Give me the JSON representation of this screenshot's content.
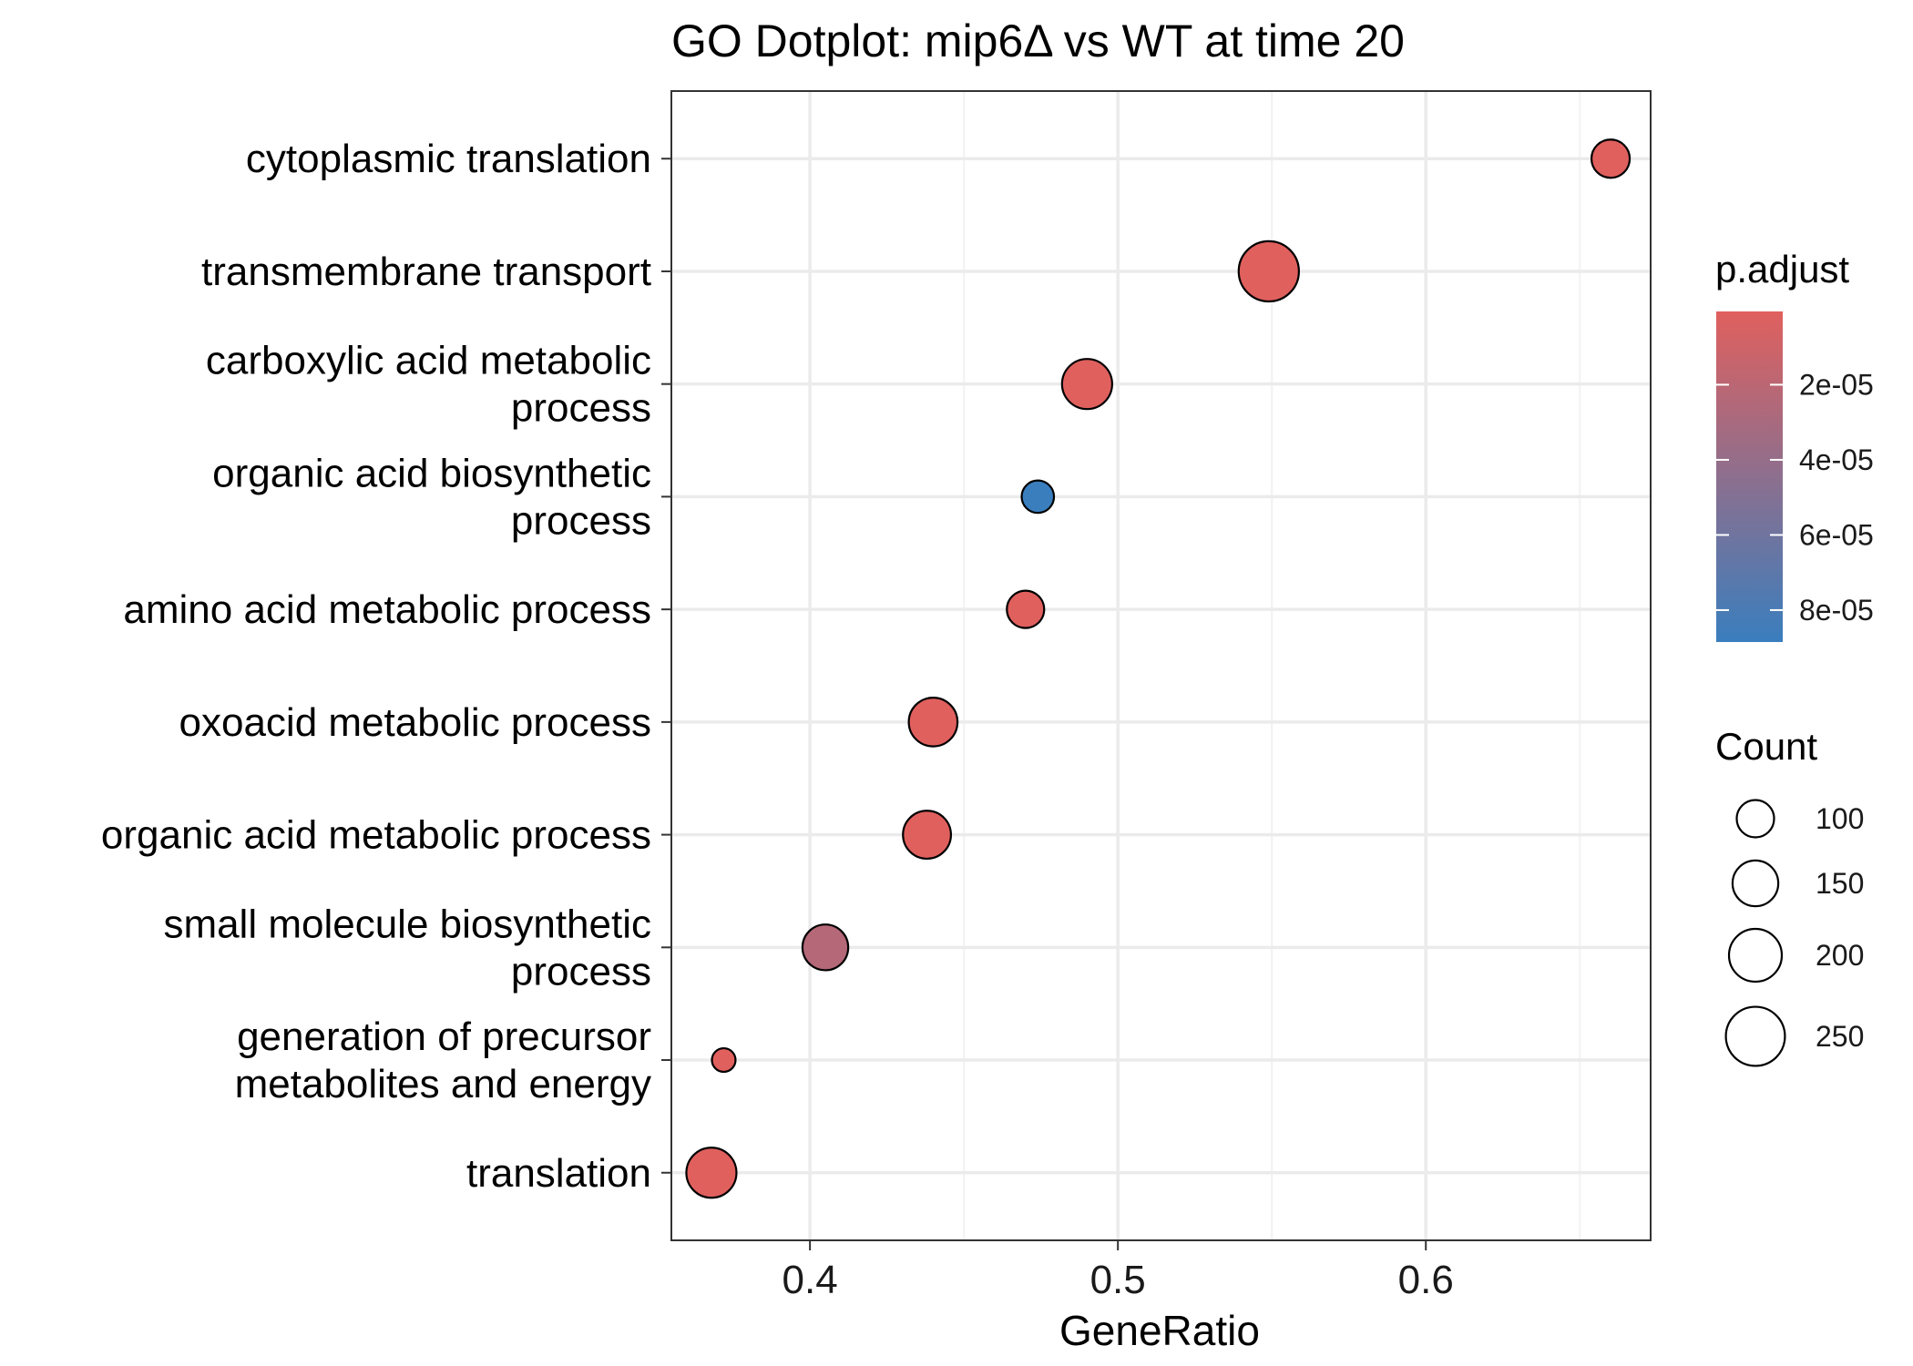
{
  "chart_data": {
    "type": "scatter",
    "title": "GO Dotplot: mip6Δ vs WT at time 20",
    "xlabel": "GeneRatio",
    "ylabel": "",
    "xlim": [
      0.355,
      0.673
    ],
    "x_ticks": [
      0.4,
      0.5,
      0.6
    ],
    "x_tick_labels": [
      "0.4",
      "0.5",
      "0.6"
    ],
    "grid": true,
    "categories": [
      [
        "cytoplasmic translation"
      ],
      [
        "transmembrane transport"
      ],
      [
        "carboxylic acid metabolic",
        "process"
      ],
      [
        "organic acid biosynthetic",
        "process"
      ],
      [
        "amino acid metabolic process"
      ],
      [
        "oxoacid metabolic process"
      ],
      [
        "organic acid metabolic process"
      ],
      [
        "small molecule biosynthetic",
        "process"
      ],
      [
        "generation of precursor",
        "metabolites and energy"
      ],
      [
        "translation"
      ]
    ],
    "points": [
      {
        "gene_ratio": 0.66,
        "count": 105,
        "p_adjust": 5e-07
      },
      {
        "gene_ratio": 0.549,
        "count": 260,
        "p_adjust": 5e-07
      },
      {
        "gene_ratio": 0.49,
        "count": 180,
        "p_adjust": 5e-07
      },
      {
        "gene_ratio": 0.474,
        "count": 75,
        "p_adjust": 8.85e-05
      },
      {
        "gene_ratio": 0.47,
        "count": 100,
        "p_adjust": 5e-07
      },
      {
        "gene_ratio": 0.44,
        "count": 170,
        "p_adjust": 5e-07
      },
      {
        "gene_ratio": 0.438,
        "count": 165,
        "p_adjust": 5e-07
      },
      {
        "gene_ratio": 0.405,
        "count": 150,
        "p_adjust": 2.4e-05
      },
      {
        "gene_ratio": 0.372,
        "count": 40,
        "p_adjust": 5e-07
      },
      {
        "gene_ratio": 0.368,
        "count": 180,
        "p_adjust": 5e-07
      }
    ],
    "color_legend": {
      "title": "p.adjust",
      "range": [
        5e-07,
        8.85e-05
      ],
      "low_color": "#E0605E",
      "high_color": "#3A7EBE",
      "ticks": [
        2e-05,
        4e-05,
        6e-05,
        8e-05
      ],
      "tick_labels": [
        "2e-05",
        "4e-05",
        "6e-05",
        "8e-05"
      ]
    },
    "size_legend": {
      "title": "Count",
      "values": [
        100,
        150,
        200,
        250
      ],
      "labels": [
        "100",
        "150",
        "200",
        "250"
      ]
    },
    "legend_position": "right"
  }
}
